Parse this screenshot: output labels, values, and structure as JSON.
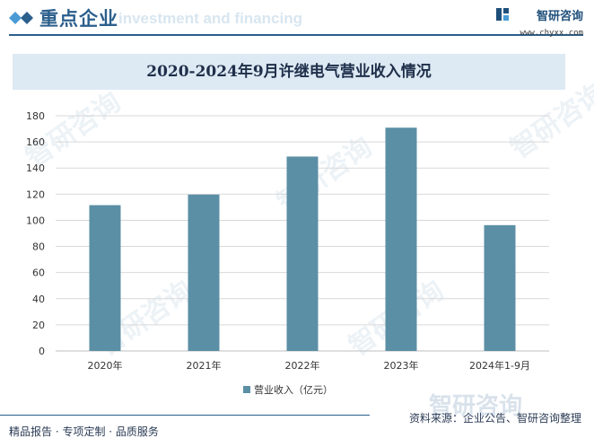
{
  "header": {
    "title": "重点企业",
    "watermark_text": "investment and financing"
  },
  "brand": {
    "name": "智研咨询",
    "url": "www.chyxx.com"
  },
  "watermark": "智研咨询",
  "chart_data": {
    "type": "bar",
    "title": "2020-2024年9月许继电气营业收入情况",
    "categories": [
      "2020年",
      "2021年",
      "2022年",
      "2023年",
      "2024年1-9月"
    ],
    "series": [
      {
        "name": "营业收入（亿元）",
        "values": [
          111.6,
          119.7,
          148.8,
          170.9,
          96.3
        ],
        "color": "#5b8fa5"
      }
    ],
    "ylim": [
      0,
      180
    ],
    "yticks": [
      0,
      20,
      40,
      60,
      80,
      100,
      120,
      140,
      160,
      180
    ],
    "grid": true,
    "legend": "bottom-center"
  },
  "footer": {
    "left": "精品报告 · 专项定制 · 品质服务",
    "right": "资料来源：企业公告、智研咨询整理"
  }
}
